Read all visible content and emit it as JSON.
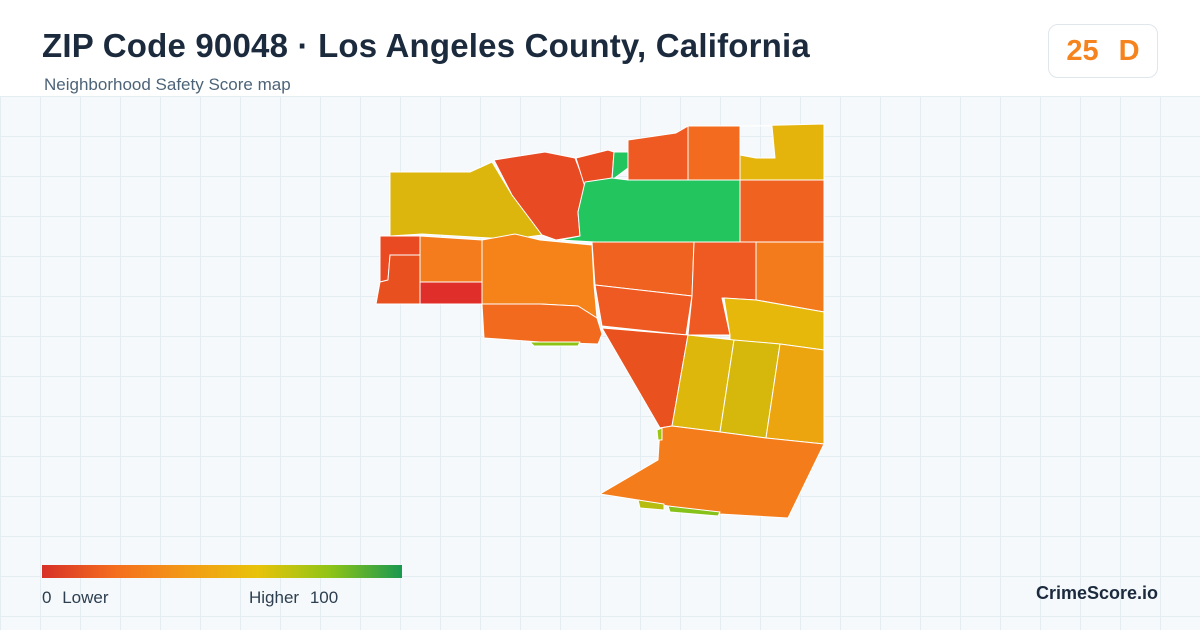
{
  "header": {
    "title": "ZIP Code 90048 · Los Angeles County, California",
    "subtitle": "Neighborhood Safety Score map"
  },
  "score": {
    "value": "25",
    "grade": "D",
    "color": "#f5841f"
  },
  "legend": {
    "min_value": "0",
    "min_label": "Lower",
    "max_label": "Higher",
    "max_value": "100",
    "colors": [
      "#d73027",
      "#f46d1e",
      "#f39a16",
      "#e8c30a",
      "#8fc417",
      "#1a9850"
    ]
  },
  "brand": "CrimeScore.io",
  "map_regions": [
    {
      "name": "region-northwest",
      "color": "#dcb60c"
    },
    {
      "name": "region-north-red",
      "color": "#e84a24"
    },
    {
      "name": "region-north-small",
      "color": "#ea4c22"
    },
    {
      "name": "region-green-tab",
      "color": "#22c55e"
    },
    {
      "name": "region-top-orange",
      "color": "#ee5a22"
    },
    {
      "name": "region-top-right-orange",
      "color": "#f26b1e"
    },
    {
      "name": "region-top-right-yellow",
      "color": "#e4b40d"
    },
    {
      "name": "region-green-large",
      "color": "#22c55e"
    },
    {
      "name": "region-east-orange",
      "color": "#f0621f"
    },
    {
      "name": "region-west-red",
      "color": "#ea4a22"
    },
    {
      "name": "region-west-red-low",
      "color": "#e8501f"
    },
    {
      "name": "region-west-deep-red",
      "color": "#e02f2a"
    },
    {
      "name": "region-west-orange",
      "color": "#f47c1c"
    },
    {
      "name": "region-central-orange",
      "color": "#f5831a"
    },
    {
      "name": "region-central-lower",
      "color": "#f26a1e"
    },
    {
      "name": "region-green-sliver",
      "color": "#8cc415"
    },
    {
      "name": "region-mid-orange",
      "color": "#f0621f"
    },
    {
      "name": "region-mid-orange-2",
      "color": "#ee5a22"
    },
    {
      "name": "region-mid-red-orange",
      "color": "#ee5a22"
    },
    {
      "name": "region-east-mid-orange",
      "color": "#f47b1c"
    },
    {
      "name": "region-yellow-band",
      "color": "#e7b80c"
    },
    {
      "name": "region-south-red",
      "color": "#e9521f"
    },
    {
      "name": "region-yellow-1",
      "color": "#ddb70b"
    },
    {
      "name": "region-yellow-2",
      "color": "#d6b80d"
    },
    {
      "name": "region-yellow-orange",
      "color": "#eca40f"
    },
    {
      "name": "region-south-large",
      "color": "#f57c1a"
    },
    {
      "name": "region-south-sliver-1",
      "color": "#b6bd10"
    },
    {
      "name": "region-south-sliver-2",
      "color": "#86c21a"
    },
    {
      "name": "region-tiny-green",
      "color": "#9cc414"
    }
  ]
}
